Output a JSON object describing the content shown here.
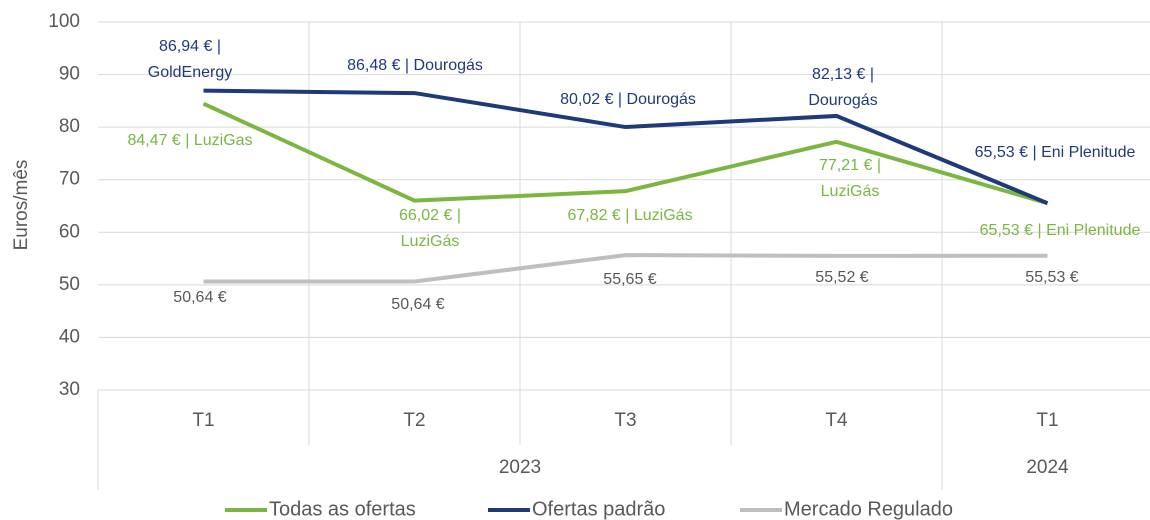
{
  "chart_data": {
    "type": "line",
    "y_label": "Euros/mês",
    "categories": [
      "T1",
      "T2",
      "T3",
      "T4",
      "T1"
    ],
    "groups": [
      {
        "label": "2023",
        "count": 4
      },
      {
        "label": "2024",
        "count": 1
      }
    ],
    "series": [
      {
        "name": "Todas as ofertas",
        "color": "#7ab640",
        "values": [
          84.47,
          66.02,
          67.82,
          77.21,
          65.53
        ],
        "value_labels": [
          "84,47 € | LuziGas",
          "66,02 € | LuziGás",
          "67,82 € | LuziGás",
          "77,21 € | LuziGás",
          "65,53 € | Eni Plenitude"
        ]
      },
      {
        "name": "Ofertas padrão",
        "color": "#1f3a7a",
        "values": [
          86.94,
          86.48,
          80.02,
          82.13,
          65.53
        ],
        "value_labels": [
          "86,94 € | GoldEnergy",
          "86,48 € | Dourogás",
          "80,02 € | Dourogás",
          "82,13 € | Dourogás",
          "65,53 € | Eni Plenitude"
        ]
      },
      {
        "name": "Mercado Regulado",
        "color": "#bfbfbf",
        "values": [
          50.64,
          50.64,
          55.65,
          55.52,
          55.53
        ],
        "value_labels": [
          "50,64 €",
          "50,64 €",
          "55,65 €",
          "55,52 €",
          "55,53 €"
        ]
      }
    ],
    "ylim": [
      30,
      100
    ],
    "yticks": [
      30,
      40,
      50,
      60,
      70,
      80,
      90,
      100
    ],
    "grid": true,
    "legend": "bottom"
  }
}
